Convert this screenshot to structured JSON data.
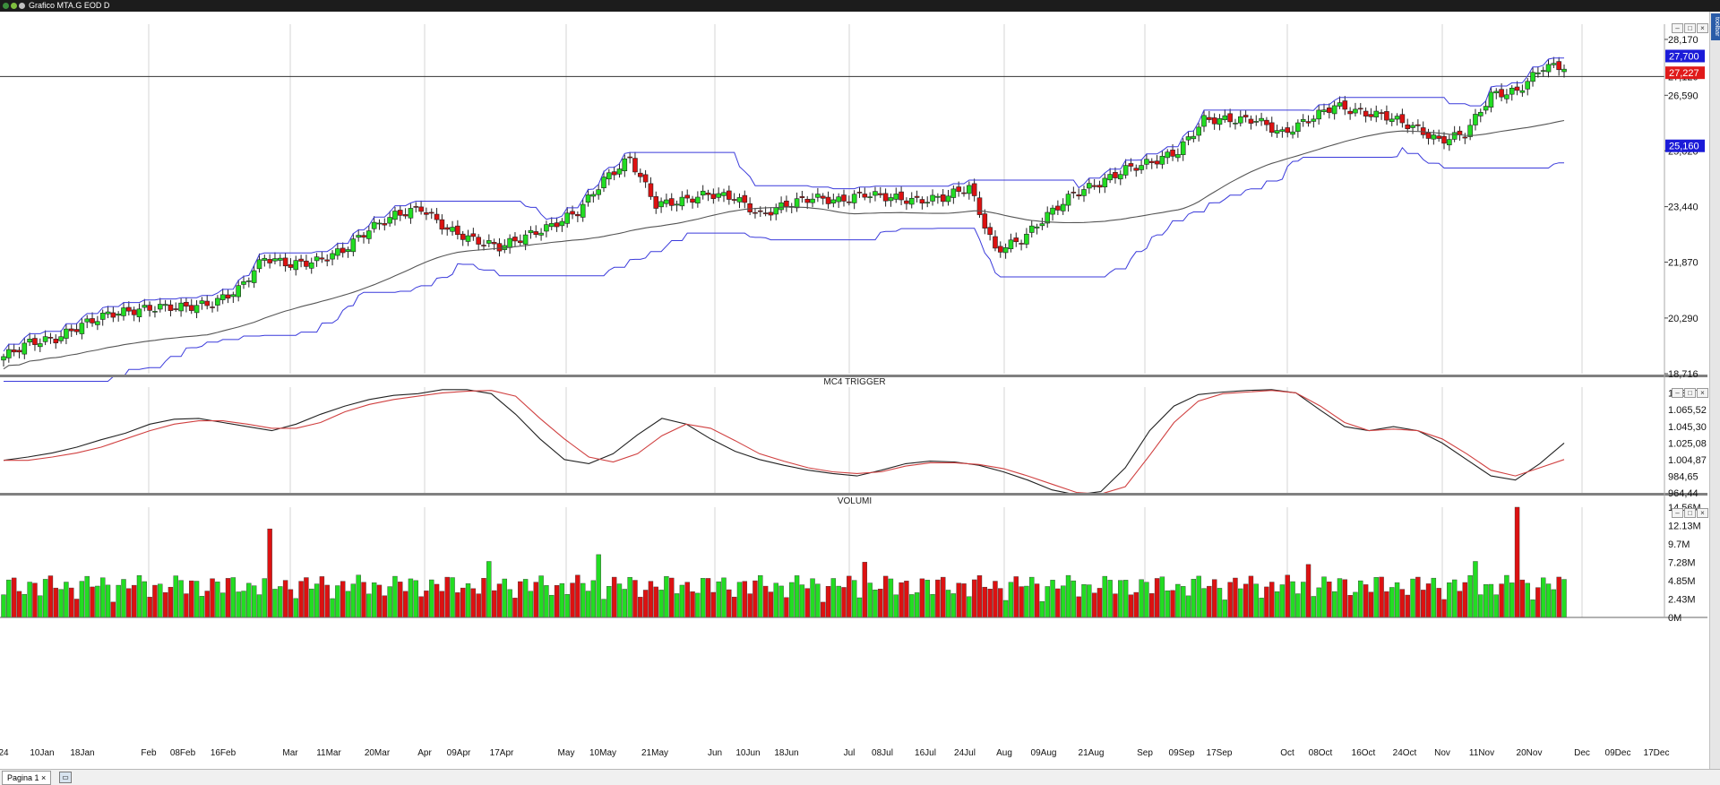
{
  "window": {
    "title": "Grafico MTA.G EOD D"
  },
  "statusbar": {
    "tab_label": "Pagina 1",
    "tab_close": "×"
  },
  "sidebar": {
    "label": "toolbar"
  },
  "colors": {
    "up": "#22dd22",
    "down": "#dd1111",
    "channel": "#3a3adb",
    "ma": "#555555",
    "oscFast": "#222222",
    "oscSlow": "#d04040",
    "grid": "#d6d6d6"
  },
  "chart_data": [
    {
      "type": "candlestick",
      "title": "",
      "overlays": [
        "price channel (blue)",
        "moving average (grey)"
      ],
      "ylim": [
        18.716,
        28.6
      ],
      "y_ticks": [
        "28,170",
        "26,590",
        "25,020",
        "23,440",
        "21,870",
        "20,290",
        "18,716"
      ],
      "badges": [
        {
          "label": "27,700",
          "value": 27.7,
          "color": "#1b1bd8"
        },
        {
          "label": "27,227",
          "value": 27.227,
          "color": "#e01a1a"
        },
        {
          "label": "25,160",
          "value": 25.16,
          "color": "#1b1bd8"
        }
      ],
      "hidden_tick": "27,120",
      "horizontal_line": 27.12,
      "close_series_weekly": [
        19.2,
        19.6,
        19.7,
        20.1,
        20.4,
        20.5,
        20.6,
        20.6,
        20.7,
        21.1,
        22.0,
        21.8,
        21.9,
        22.2,
        22.8,
        23.2,
        23.4,
        22.8,
        22.5,
        22.3,
        22.6,
        22.9,
        23.3,
        24.2,
        24.8,
        23.5,
        23.6,
        23.8,
        23.7,
        23.2,
        23.5,
        23.7,
        23.6,
        23.8,
        23.7,
        23.6,
        23.7,
        24.0,
        22.2,
        22.5,
        23.2,
        23.8,
        24.1,
        24.5,
        24.7,
        25.0,
        25.9,
        25.9,
        25.9,
        25.5,
        25.9,
        26.3,
        26.1,
        26.0,
        25.7,
        25.3,
        25.5,
        26.6,
        26.7,
        27.4
      ]
    },
    {
      "type": "line",
      "title": "MC4 TRIGGER",
      "ylim": [
        964.44,
        1093
      ],
      "y_ticks": [
        "1.085,73",
        "1.065,52",
        "1.045,30",
        "1.025,08",
        "1.004,87",
        "984,65",
        "964,44"
      ],
      "series": [
        {
          "values": [
            1004,
            1008,
            1013,
            1020,
            1029,
            1037,
            1048,
            1054,
            1055,
            1050,
            1045,
            1040,
            1048,
            1060,
            1070,
            1078,
            1083,
            1085,
            1090,
            1090,
            1085,
            1060,
            1030,
            1005,
            1000,
            1012,
            1035,
            1055,
            1048,
            1030,
            1015,
            1005,
            998,
            992,
            988,
            985,
            992,
            1000,
            1003,
            1002,
            998,
            990,
            980,
            968,
            962,
            966,
            995,
            1040,
            1070,
            1084,
            1087,
            1089,
            1090,
            1086,
            1065,
            1045,
            1040,
            1045,
            1040,
            1025,
            1005,
            985,
            980,
            1000,
            1025
          ]
        },
        {
          "values": [
            1004,
            1004,
            1008,
            1013,
            1020,
            1030,
            1040,
            1048,
            1052,
            1052,
            1048,
            1043,
            1043,
            1050,
            1063,
            1072,
            1078,
            1082,
            1086,
            1088,
            1089,
            1082,
            1055,
            1030,
            1008,
            1002,
            1012,
            1034,
            1048,
            1043,
            1028,
            1012,
            1003,
            995,
            990,
            988,
            990,
            997,
            1001,
            1001,
            999,
            994,
            985,
            975,
            965,
            963,
            972,
            1010,
            1050,
            1076,
            1085,
            1087,
            1089,
            1086,
            1070,
            1050,
            1040,
            1042,
            1040,
            1030,
            1012,
            992,
            985,
            995,
            1005
          ]
        }
      ]
    },
    {
      "type": "bar",
      "title": "VOLUMI",
      "ylim": [
        0,
        14.56
      ],
      "y_ticks": [
        "14.56M",
        "12.13M",
        "9.7M",
        "7.28M",
        "4.85M",
        "2.43M",
        "0M"
      ]
    }
  ],
  "x_axis": {
    "labels": [
      "24",
      "10Jan",
      "18Jan",
      "Feb",
      "08Feb",
      "16Feb",
      "Mar",
      "11Mar",
      "20Mar",
      "Apr",
      "09Apr",
      "17Apr",
      "May",
      "10May",
      "21May",
      "Jun",
      "10Jun",
      "18Jun",
      "Jul",
      "08Jul",
      "16Jul",
      "24Jul",
      "Aug",
      "09Aug",
      "21Aug",
      "Sep",
      "09Sep",
      "17Sep",
      "Oct",
      "08Oct",
      "16Oct",
      "24Oct",
      "Nov",
      "11Nov",
      "20Nov",
      "Dec",
      "09Dec",
      "17Dec"
    ]
  }
}
